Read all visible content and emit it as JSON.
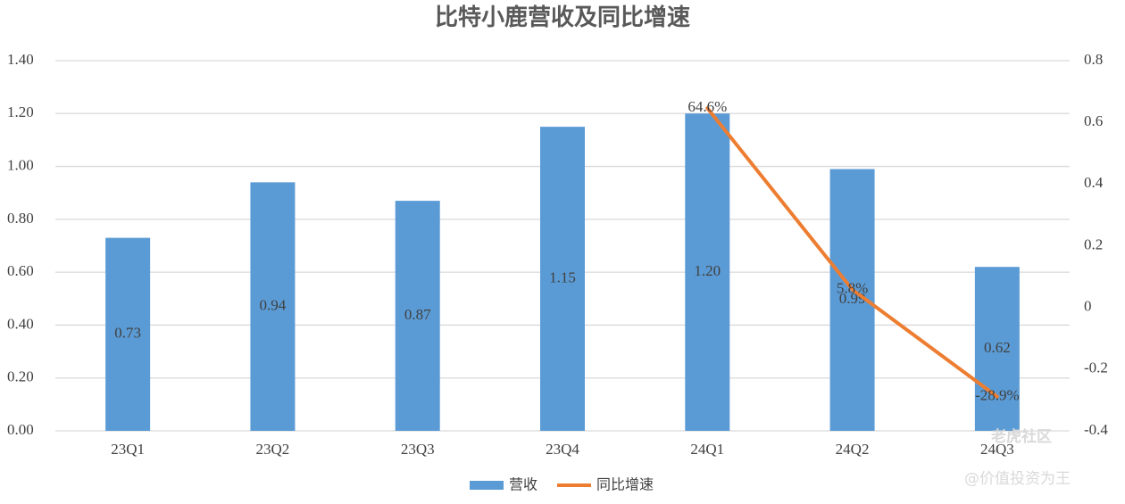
{
  "chart_data": {
    "type": "bar_line",
    "title": "比特小鹿营收及同比增速",
    "categories": [
      "23Q1",
      "23Q2",
      "23Q3",
      "23Q4",
      "24Q1",
      "24Q2",
      "24Q3"
    ],
    "series": [
      {
        "name": "营收",
        "type": "bar",
        "color": "#5b9bd5",
        "axis": "y",
        "values": [
          0.73,
          0.94,
          0.87,
          1.15,
          1.2,
          0.99,
          0.62
        ],
        "value_labels": [
          "0.73",
          "0.94",
          "0.87",
          "1.15",
          "1.20",
          "0.99",
          "0.62"
        ]
      },
      {
        "name": "同比增速",
        "type": "line",
        "color": "#ed7d31",
        "axis": "y2",
        "values": [
          null,
          null,
          null,
          null,
          0.646,
          0.058,
          -0.289
        ],
        "value_labels": [
          null,
          null,
          null,
          null,
          "64.6%",
          "5.8%",
          "-28.9%"
        ]
      }
    ],
    "ylim": [
      0,
      1.4
    ],
    "yticks": [
      {
        "value": 0,
        "label": "0.00"
      },
      {
        "value": 0.2,
        "label": "0.20"
      },
      {
        "value": 0.4,
        "label": "0.40"
      },
      {
        "value": 0.6,
        "label": "0.60"
      },
      {
        "value": 0.8,
        "label": "0.80"
      },
      {
        "value": 1.0,
        "label": "1.00"
      },
      {
        "value": 1.2,
        "label": "1.20"
      },
      {
        "value": 1.4,
        "label": "1.40"
      }
    ],
    "y2lim": [
      -0.4,
      0.8
    ],
    "y2ticks": [
      -0.4,
      -0.2,
      0,
      0.2,
      0.4,
      0.6,
      0.8
    ],
    "grid": true,
    "legend": "bottom",
    "watermark": [
      "老虎社区",
      "@价值投资为王"
    ]
  }
}
